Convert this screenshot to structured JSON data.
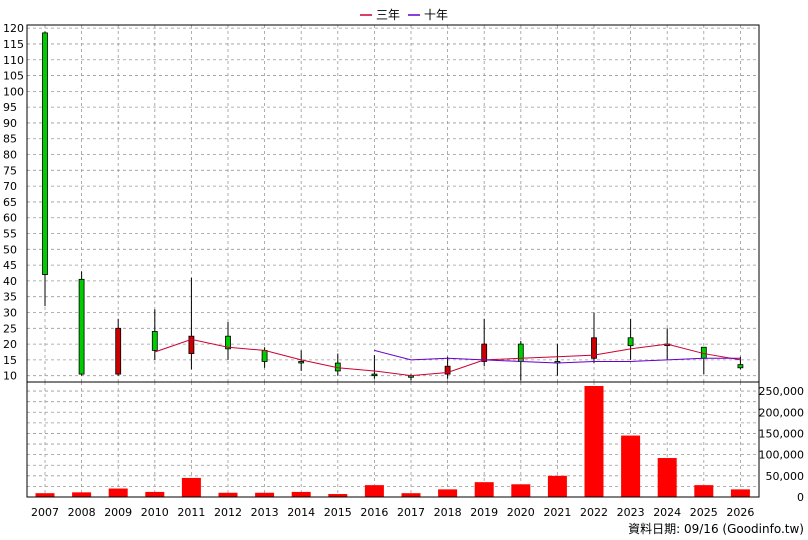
{
  "chart_data": [
    {
      "type": "candlestick",
      "legend": [
        {
          "name": "三年",
          "color": "#cc0033"
        },
        {
          "name": "十年",
          "color": "#6600cc"
        }
      ],
      "legend_position": "top-center",
      "grid": true,
      "ylim": [
        8,
        121
      ],
      "y_ticks": [
        10,
        15,
        20,
        25,
        30,
        35,
        40,
        45,
        50,
        55,
        60,
        65,
        70,
        75,
        80,
        85,
        90,
        95,
        100,
        105,
        110,
        115,
        120
      ],
      "categories": [
        "2007",
        "2008",
        "2009",
        "2010",
        "2011",
        "2012",
        "2013",
        "2014",
        "2015",
        "2016",
        "2017",
        "2018",
        "2019",
        "2020",
        "2021",
        "2022",
        "2023",
        "2024",
        "2025",
        "2026"
      ],
      "ohlc": [
        {
          "open": 42,
          "high": 119,
          "low": 32,
          "close": 118.5
        },
        {
          "open": 10.5,
          "high": 43,
          "low": 10,
          "close": 40.5
        },
        {
          "open": 25,
          "high": 28,
          "low": 10,
          "close": 10.5
        },
        {
          "open": 18,
          "high": 31,
          "low": 15,
          "close": 24
        },
        {
          "open": 22.5,
          "high": 41,
          "low": 12,
          "close": 17
        },
        {
          "open": 18.5,
          "high": 27,
          "low": 15,
          "close": 22.5
        },
        {
          "open": 14.5,
          "high": 19,
          "low": 12.5,
          "close": 18
        },
        {
          "open": 14.5,
          "high": 18,
          "low": 11.5,
          "close": 14.5
        },
        {
          "open": 11.5,
          "high": 17,
          "low": 10,
          "close": 14
        },
        {
          "open": 10,
          "high": 16.5,
          "low": 9,
          "close": 10.5
        },
        {
          "open": 9.5,
          "high": 10.5,
          "low": 8.5,
          "close": 10
        },
        {
          "open": 13,
          "high": 16,
          "low": 9,
          "close": 10.5
        },
        {
          "open": 20,
          "high": 28,
          "low": 13,
          "close": 14.5
        },
        {
          "open": 14.5,
          "high": 21,
          "low": 8.5,
          "close": 20
        },
        {
          "open": 14,
          "high": 20,
          "low": 10,
          "close": 14.5
        },
        {
          "open": 22,
          "high": 30,
          "low": 14,
          "close": 15.5
        },
        {
          "open": 19.5,
          "high": 28,
          "low": 15,
          "close": 22
        },
        {
          "open": 20,
          "high": 25,
          "low": 15,
          "close": 20
        },
        {
          "open": 15.5,
          "high": 19,
          "low": 10.5,
          "close": 19
        },
        {
          "open": 12.5,
          "high": 16,
          "low": 12,
          "close": 13.5
        }
      ],
      "series": [
        {
          "name": "三年",
          "values": [
            null,
            null,
            null,
            17.5,
            21.5,
            19.0,
            18.0,
            15.0,
            12.5,
            11.5,
            10.0,
            11.0,
            15.0,
            15.5,
            16.0,
            16.5,
            18.5,
            20.0,
            17.0,
            15.0
          ]
        },
        {
          "name": "十年",
          "values": [
            null,
            null,
            null,
            null,
            null,
            null,
            null,
            null,
            null,
            18.0,
            15.0,
            15.5,
            15.0,
            14.5,
            14.0,
            14.5,
            14.5,
            15.0,
            15.5,
            15.5
          ]
        }
      ]
    },
    {
      "type": "bar",
      "categories": [
        "2007",
        "2008",
        "2009",
        "2010",
        "2011",
        "2012",
        "2013",
        "2014",
        "2015",
        "2016",
        "2017",
        "2018",
        "2019",
        "2020",
        "2021",
        "2022",
        "2023",
        "2024",
        "2025",
        "2026"
      ],
      "values": [
        9000,
        11000,
        20000,
        12000,
        45000,
        10000,
        10000,
        12000,
        7000,
        28000,
        9000,
        18000,
        35000,
        30000,
        50000,
        262000,
        145000,
        92000,
        28000,
        18000
      ],
      "ylim": [
        0,
        262000
      ],
      "y_ticks": [
        0,
        25000,
        50000,
        75000,
        100000,
        125000,
        150000,
        175000,
        200000,
        225000,
        250000
      ],
      "y_tick_labels": [
        "0",
        "",
        "50,000",
        "",
        "100,000",
        "",
        "150,000",
        "",
        "200,000",
        "",
        "250,000"
      ],
      "grid": true,
      "color": "#ff0000"
    }
  ],
  "footer": "資料日期: 09/16  (Goodinfo.tw)"
}
